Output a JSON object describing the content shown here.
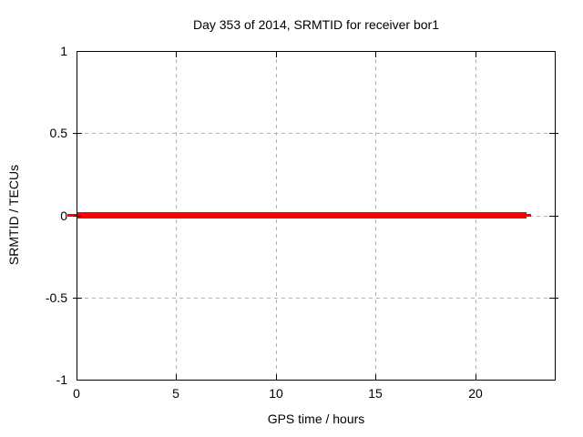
{
  "window": {
    "background": "#ffffff"
  },
  "chart_data": {
    "type": "line",
    "title": "Day 353 of 2014, SRMTID for receiver bor1",
    "xlabel": "GPS time / hours",
    "ylabel": "SRMTID / TECUs",
    "xlim": [
      0,
      24
    ],
    "ylim": [
      -1,
      1
    ],
    "xticks": [
      0,
      5,
      10,
      15,
      20
    ],
    "xtick_labels": [
      "0",
      "5",
      "10",
      "15",
      "20"
    ],
    "yticks": [
      1,
      0.5,
      0,
      -0.5,
      -1
    ],
    "ytick_labels": [
      "1",
      "0.5",
      "0",
      "-0.5",
      "-1"
    ],
    "grid": true,
    "legend": "none",
    "colors": {
      "line": "#ff0000",
      "grid": "#b3b3b3",
      "axis": "#000000",
      "text": "#000000",
      "background": "#ffffff"
    },
    "series": [
      {
        "name": "SRMTID",
        "color": "#ff0000",
        "y_constant": 0,
        "x_start": 0,
        "x_end": 22.8,
        "thick_x_end": 22.6
      }
    ]
  }
}
